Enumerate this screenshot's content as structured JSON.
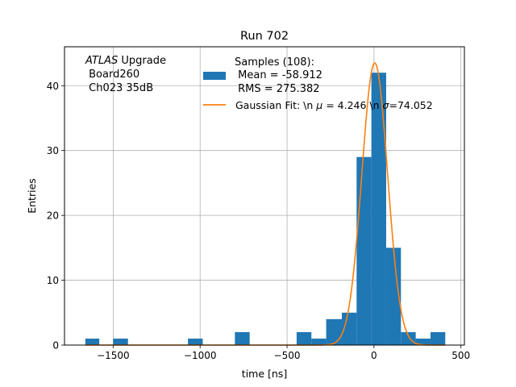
{
  "chart_data": {
    "type": "bar",
    "title": "Run 702",
    "xlabel": "time [ns]",
    "ylabel": "Entries",
    "xlim": [
      -1780,
      520
    ],
    "ylim": [
      0,
      46
    ],
    "grid": true,
    "x_ticks": [
      -1500,
      -1000,
      -500,
      0,
      500
    ],
    "x_tick_labels": [
      "−1500",
      "−1000",
      "−500",
      "0",
      "500"
    ],
    "y_ticks": [
      0,
      10,
      20,
      30,
      40
    ],
    "y_tick_labels": [
      "0",
      "10",
      "20",
      "30",
      "40"
    ],
    "annotation": {
      "italic": "ATLAS",
      "rest": " Upgrade",
      "line2": " Board260",
      "line3": " Ch023 35dB"
    },
    "legend_position": "top-right",
    "histogram": {
      "label_line1": "Samples (108):",
      "label_line2": " Mean = -58.912",
      "label_line3": " RMS = 275.382",
      "color": "#1f77b4",
      "bins": [
        {
          "x0": -1660,
          "x1": -1580,
          "count": 1
        },
        {
          "x0": -1500,
          "x1": -1415,
          "count": 1
        },
        {
          "x0": -1070,
          "x1": -985,
          "count": 1
        },
        {
          "x0": -800,
          "x1": -715,
          "count": 2
        },
        {
          "x0": -445,
          "x1": -360,
          "count": 2
        },
        {
          "x0": -360,
          "x1": -275,
          "count": 1
        },
        {
          "x0": -275,
          "x1": -185,
          "count": 4
        },
        {
          "x0": -185,
          "x1": -100,
          "count": 5
        },
        {
          "x0": -100,
          "x1": -15,
          "count": 29
        },
        {
          "x0": -15,
          "x1": 70,
          "count": 42
        },
        {
          "x0": 70,
          "x1": 155,
          "count": 15
        },
        {
          "x0": 155,
          "x1": 240,
          "count": 2
        },
        {
          "x0": 240,
          "x1": 325,
          "count": 1
        },
        {
          "x0": 325,
          "x1": 410,
          "count": 2
        }
      ]
    },
    "gaussian_fit": {
      "label_prefix": "Gaussian Fit: \\n ",
      "mu_symbol": "μ",
      "mu_text": " = 4.246 \\n ",
      "sigma_symbol": "σ",
      "sigma_text": "=74.052",
      "mu": 4.246,
      "sigma": 74.052,
      "amplitude": 43.5,
      "x_range": [
        -1660,
        410
      ],
      "color": "#ff7f0e"
    }
  }
}
